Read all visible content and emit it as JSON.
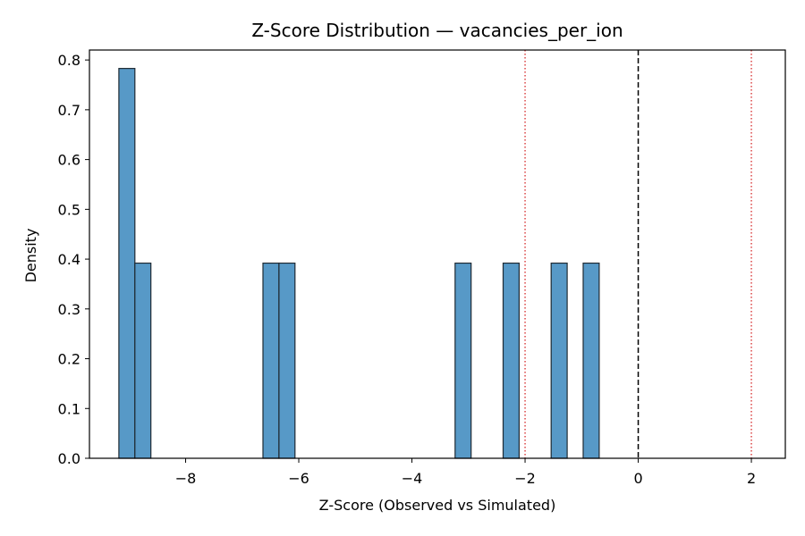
{
  "chart_data": {
    "type": "bar",
    "title": "Z-Score Distribution — vacancies_per_ion",
    "xlabel": "Z-Score (Observed vs Simulated)",
    "ylabel": "Density",
    "xlim": [
      -9.7,
      2.6
    ],
    "ylim": [
      0.0,
      0.82
    ],
    "xticks": [
      -8,
      -6,
      -4,
      -2,
      0,
      2
    ],
    "xtick_labels": [
      "−8",
      "−6",
      "−4",
      "−2",
      "0",
      "2"
    ],
    "yticks": [
      0.0,
      0.1,
      0.2,
      0.3,
      0.4,
      0.5,
      0.6,
      0.7,
      0.8
    ],
    "ytick_labels": [
      "0.0",
      "0.1",
      "0.2",
      "0.3",
      "0.4",
      "0.5",
      "0.6",
      "0.7",
      "0.8"
    ],
    "bin_width": 0.283,
    "bars": [
      {
        "x0": -9.18,
        "height": 0.783
      },
      {
        "x0": -8.897,
        "height": 0.392
      },
      {
        "x0": -6.633,
        "height": 0.392
      },
      {
        "x0": -6.35,
        "height": 0.392
      },
      {
        "x0": -3.237,
        "height": 0.392
      },
      {
        "x0": -2.388,
        "height": 0.392
      },
      {
        "x0": -1.539,
        "height": 0.392
      },
      {
        "x0": -0.973,
        "height": 0.392
      }
    ],
    "reference_lines": [
      {
        "x": 0,
        "style": "dashed",
        "color": "#000000"
      },
      {
        "x": -2,
        "style": "dotted",
        "color": "#d62728"
      },
      {
        "x": 2,
        "style": "dotted",
        "color": "#d62728"
      }
    ],
    "bar_color": "#5799c7",
    "bar_edge_color": "#1f2a33",
    "grid": false,
    "legend": "none"
  }
}
